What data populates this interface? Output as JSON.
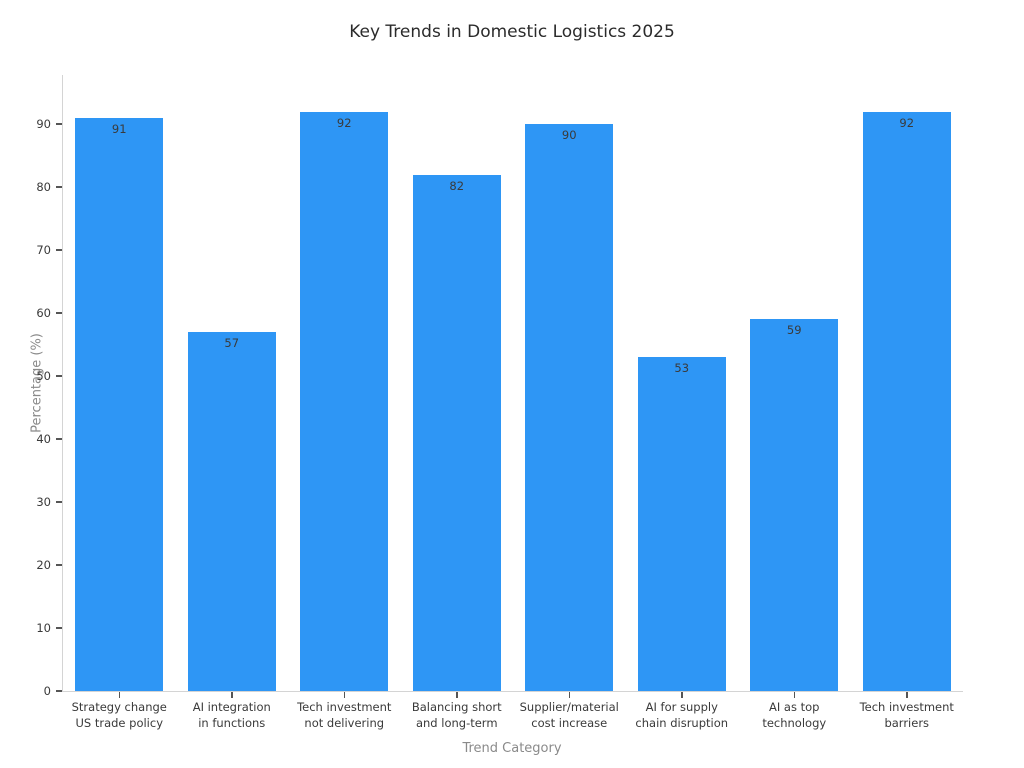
{
  "chart_data": {
    "type": "bar",
    "title": "Key Trends in Domestic Logistics 2025",
    "xlabel": "Trend Category",
    "ylabel": "Percentage (%)",
    "categories": [
      "Strategy change\nUS trade policy",
      "AI integration\nin functions",
      "Tech investment\nnot delivering",
      "Balancing short\nand long-term",
      "Supplier/material\ncost increase",
      "AI for supply\nchain disruption",
      "AI as top\ntechnology",
      "Tech investment\nbarriers"
    ],
    "values": [
      91,
      57,
      92,
      82,
      90,
      53,
      59,
      92
    ],
    "yticks": [
      0,
      10,
      20,
      30,
      40,
      50,
      60,
      70,
      80,
      90
    ],
    "ylim": [
      0,
      97.8
    ],
    "grid": false,
    "legend": "none",
    "bar_color": "#2E96F5",
    "value_label_color": "#3a3a3a",
    "tick_label_color": "#3a3a3a",
    "axis_title_color": "#8a8a8a",
    "spine_color": "#d4d4d4"
  }
}
